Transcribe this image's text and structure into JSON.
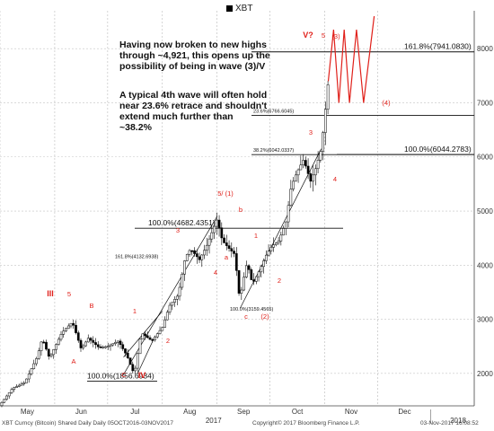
{
  "chart_data": {
    "type": "candlestick",
    "legend": [
      {
        "name": "XBT",
        "color": "#000000"
      }
    ],
    "yaxis": {
      "side": "right",
      "ticks": [
        2000,
        3000,
        4000,
        5000,
        6000,
        7000,
        8000
      ],
      "range": [
        1400,
        8700
      ]
    },
    "xaxis": {
      "month_labels": [
        "May",
        "Jun",
        "Jul",
        "Aug",
        "Sep",
        "Oct",
        "Nov",
        "Dec"
      ],
      "year_labels": [
        "2017",
        "2018"
      ]
    },
    "date_range": [
      "2017-05-01",
      "2017-12-31"
    ],
    "series_points": [
      [
        "2017-05-01",
        1420
      ],
      [
        "2017-05-08",
        1720
      ],
      [
        "2017-05-15",
        1830
      ],
      [
        "2017-05-22",
        2300
      ],
      [
        "2017-05-25",
        2650
      ],
      [
        "2017-05-29",
        2280
      ],
      [
        "2017-06-05",
        2750
      ],
      [
        "2017-06-11",
        2950
      ],
      [
        "2017-06-16",
        2450
      ],
      [
        "2017-06-20",
        2650
      ],
      [
        "2017-06-26",
        2480
      ],
      [
        "2017-07-01",
        2500
      ],
      [
        "2017-07-07",
        2600
      ],
      [
        "2017-07-12",
        2320
      ],
      [
        "2017-07-16",
        1980
      ],
      [
        "2017-07-20",
        2750
      ],
      [
        "2017-07-26",
        2600
      ],
      [
        "2017-08-01",
        2850
      ],
      [
        "2017-08-05",
        3250
      ],
      [
        "2017-08-10",
        3450
      ],
      [
        "2017-08-14",
        4150
      ],
      [
        "2017-08-17",
        4300
      ],
      [
        "2017-08-22",
        4100
      ],
      [
        "2017-08-26",
        4350
      ],
      [
        "2017-09-01",
        4850
      ],
      [
        "2017-09-04",
        4450
      ],
      [
        "2017-09-08",
        4300
      ],
      [
        "2017-09-11",
        4200
      ],
      [
        "2017-09-14",
        3300
      ],
      [
        "2017-09-15",
        3600
      ],
      [
        "2017-09-18",
        4050
      ],
      [
        "2017-09-21",
        3650
      ],
      [
        "2017-09-25",
        3900
      ],
      [
        "2017-09-29",
        4200
      ],
      [
        "2017-10-02",
        4350
      ],
      [
        "2017-10-06",
        4450
      ],
      [
        "2017-10-10",
        4800
      ],
      [
        "2017-10-13",
        5450
      ],
      [
        "2017-10-16",
        5700
      ],
      [
        "2017-10-20",
        5950
      ],
      [
        "2017-10-24",
        5550
      ],
      [
        "2017-10-27",
        5800
      ],
      [
        "2017-10-30",
        6150
      ],
      [
        "2017-11-01",
        6750
      ],
      [
        "2017-11-03",
        7400
      ]
    ],
    "hlines": [
      {
        "label": "161.8%(7941.0830)",
        "y": 7941.083
      },
      {
        "label": "23.6%(6766.6045)",
        "y": 6766.6045
      },
      {
        "label": "38.2%(6042.0337)",
        "y": 6042.0337
      },
      {
        "label": "100.0%(6044.2783)",
        "y": 6044.2783
      },
      {
        "label": "100.0%(4682.4351)",
        "y": 4682.4351
      },
      {
        "label": "161.8%(4132.6938)",
        "y": 4132.6938
      },
      {
        "label": "100.0%(3159.4565)",
        "y": 3159.4565
      },
      {
        "label": "100.0%(1856.6934)",
        "y": 1856.6934
      }
    ],
    "projection": [
      [
        "2017-11-03",
        7400
      ],
      [
        "2017-11-06",
        8350
      ],
      [
        "2017-11-09",
        7000
      ],
      [
        "2017-11-12",
        8350
      ],
      [
        "2017-11-15",
        7000
      ],
      [
        "2017-11-19",
        8350
      ],
      [
        "2017-11-23",
        7000
      ],
      [
        "2017-11-29",
        8600
      ]
    ],
    "wave_labels": [
      "III",
      "5",
      "A",
      "B",
      "C",
      "IV",
      "1",
      "2",
      "3",
      "4",
      "5/ (1)",
      "a",
      "b",
      "c",
      "1",
      "2",
      "(2)",
      "3",
      "4",
      "V?",
      "5",
      "(3)",
      "(4)"
    ],
    "annotations": [
      "Having now broken to new highs through ~4,921, this opens up the possibility of being in wave (3)/V",
      "A typical 4th wave will often hold near 23.6% retrace and shouldn't extend much further than ~38.2%"
    ]
  },
  "footer": {
    "left": "XBT Curncy (Bitcoin) Shared Daily   Daily 05OCT2016-03NOV2017",
    "middle": "Copyright© 2017 Bloomberg Finance L.P.",
    "right": "03-Nov-2017 16:08:52"
  }
}
